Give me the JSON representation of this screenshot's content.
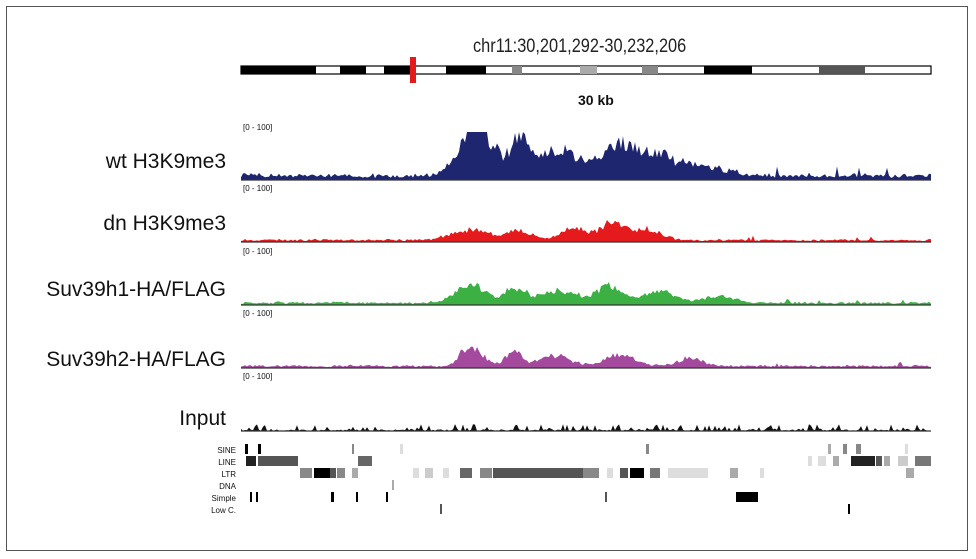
{
  "locus": "chr11:30,201,292-30,232,206",
  "scale_label": "30 kb",
  "range_label": "[0 - 100]",
  "tracks": [
    {
      "name": "wt H3K9me3",
      "color": "#1f2670"
    },
    {
      "name": "dn H3K9me3",
      "color": "#e41a1c"
    },
    {
      "name": "Suv39h1-HA/FLAG",
      "color": "#3cb043"
    },
    {
      "name": "Suv39h2-HA/FLAG",
      "color": "#a34a9e"
    },
    {
      "name": "Input",
      "color": "#111111"
    }
  ],
  "repeat_classes": [
    "SINE",
    "LINE",
    "LTR",
    "DNA",
    "Simple",
    "Low C."
  ],
  "ideogram_highlight_color": "#e41a1c"
}
